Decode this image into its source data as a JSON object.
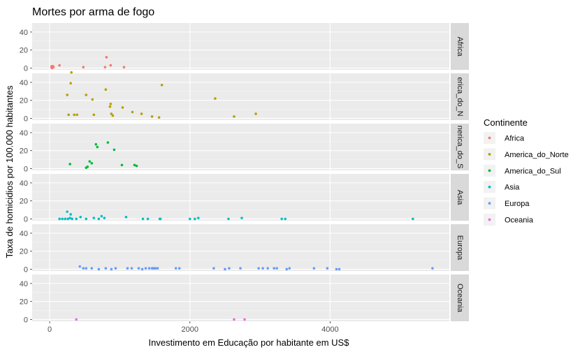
{
  "chart_data": {
    "type": "scatter",
    "title": "Mortes por arma de fogo",
    "xlabel": "Investimento em Educação por habitante em US$",
    "ylabel": "Taxa de homicidios por 100.000 habitantes",
    "xlim": [
      -250,
      5700
    ],
    "ylim": [
      -2,
      50
    ],
    "xticks": [
      0,
      2000,
      4000
    ],
    "yticks": [
      0,
      20,
      40
    ],
    "grid": true,
    "legend": {
      "title": "Continente",
      "position": "right"
    },
    "facet_labels_shown": [
      "Africa",
      "erica_do_N",
      "nerica_do_S",
      "Asia",
      "Europa",
      "Oceania"
    ],
    "series": [
      {
        "name": "Africa",
        "color": "#F8766D",
        "x": [
          25,
          30,
          35,
          40,
          45,
          55,
          140,
          480,
          790,
          810,
          870,
          1060
        ],
        "y": [
          1,
          2,
          0,
          1,
          2,
          1,
          3,
          1,
          1,
          12,
          3,
          1
        ]
      },
      {
        "name": "America_do_Norte",
        "color": "#B79F00",
        "x": [
          250,
          270,
          300,
          310,
          350,
          390,
          520,
          610,
          630,
          800,
          860,
          870,
          880,
          900,
          1040,
          1180,
          1310,
          1460,
          1560,
          1600,
          2360,
          2630,
          2940
        ],
        "y": [
          26,
          4,
          39,
          51,
          4,
          4,
          26,
          21,
          4,
          32,
          13,
          16,
          5,
          3,
          12,
          7,
          5,
          2,
          1,
          37,
          22,
          2,
          5
        ]
      },
      {
        "name": "America_do_Sul",
        "color": "#00BA38",
        "x": [
          290,
          520,
          540,
          570,
          600,
          660,
          680,
          830,
          920,
          1030,
          1210,
          1240
        ],
        "y": [
          5,
          1,
          2,
          8,
          6,
          27,
          24,
          29,
          21,
          4,
          4,
          3
        ]
      },
      {
        "name": "Asia",
        "color": "#00BFC4",
        "x": [
          140,
          180,
          220,
          250,
          260,
          290,
          300,
          320,
          380,
          440,
          520,
          630,
          700,
          740,
          780,
          1090,
          1330,
          1400,
          1570,
          1580,
          2000,
          2070,
          2120,
          2550,
          2740,
          3310,
          3360,
          5180
        ],
        "y": [
          0,
          0,
          0,
          8,
          0,
          1,
          5,
          0,
          0,
          2,
          0,
          1,
          0,
          3,
          1,
          2,
          0,
          0,
          0,
          0,
          0,
          0,
          1,
          0,
          1,
          0,
          0,
          0
        ]
      },
      {
        "name": "Europa",
        "color": "#619CFF",
        "x": [
          430,
          480,
          520,
          600,
          700,
          800,
          880,
          940,
          1110,
          1170,
          1270,
          1320,
          1370,
          1420,
          1460,
          1470,
          1490,
          1510,
          1540,
          1800,
          1850,
          2340,
          2500,
          2560,
          2720,
          2980,
          3040,
          3110,
          3200,
          3240,
          3380,
          3420,
          3770,
          3960,
          4090,
          4130,
          5460
        ],
        "y": [
          3,
          1,
          1,
          1,
          0,
          1,
          0,
          1,
          1,
          1,
          1,
          0,
          1,
          1,
          1,
          1,
          1,
          1,
          1,
          1,
          1,
          1,
          0,
          1,
          1,
          1,
          1,
          1,
          1,
          1,
          0,
          1,
          1,
          1,
          0,
          0,
          1
        ]
      },
      {
        "name": "Oceania",
        "color": "#F564E3",
        "x": [
          380,
          2630,
          2780
        ],
        "y": [
          0,
          0,
          0
        ]
      }
    ]
  }
}
